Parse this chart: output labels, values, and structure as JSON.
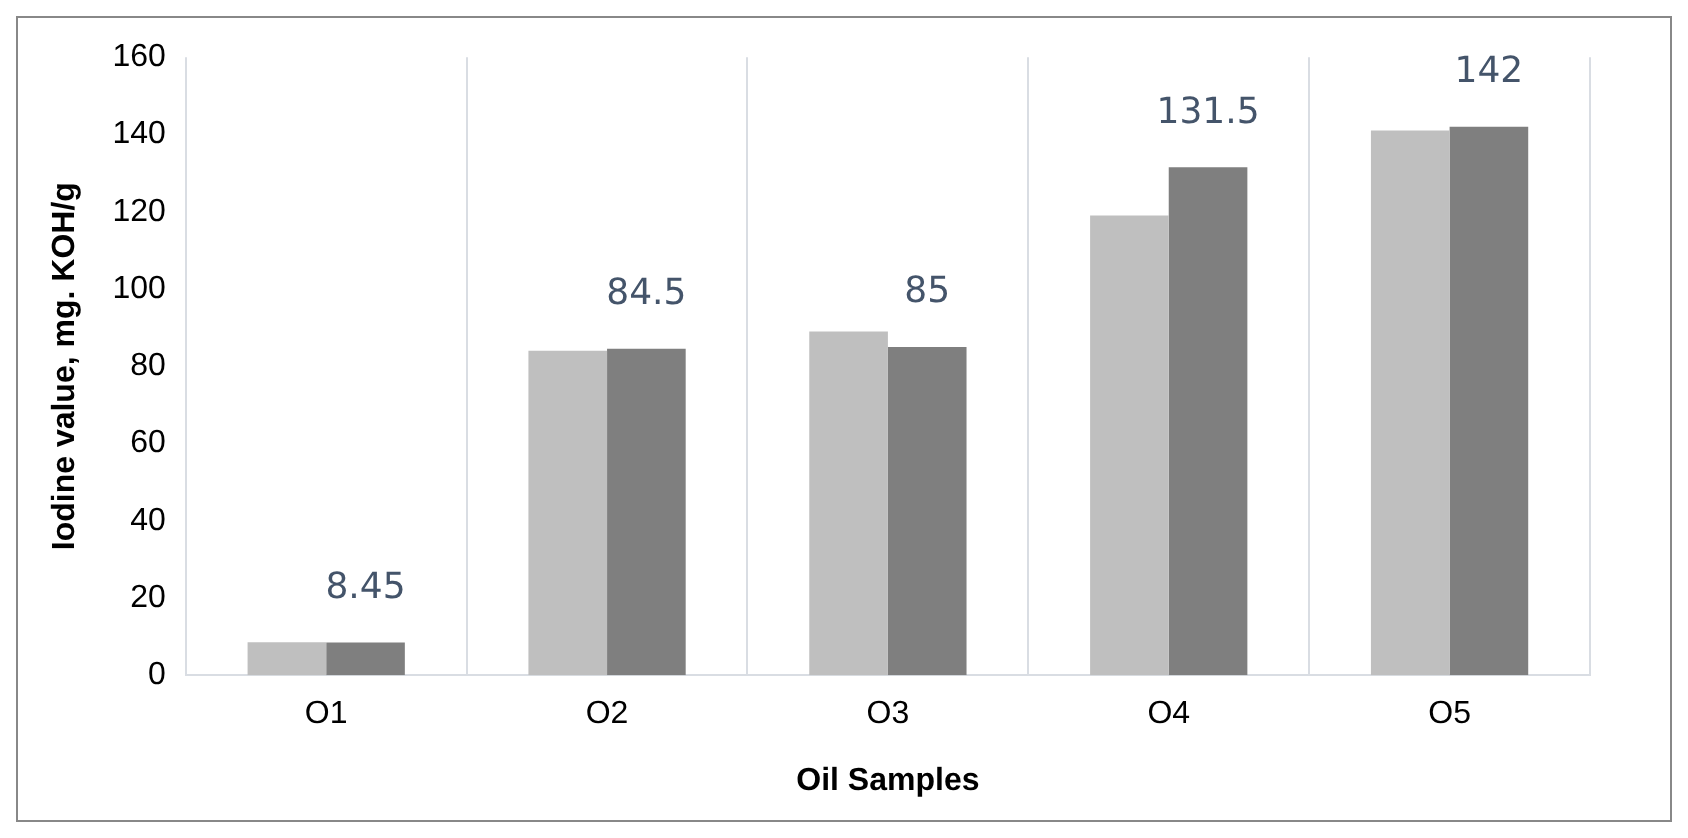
{
  "chart_data": {
    "type": "bar",
    "xlabel": "Oil Samples",
    "ylabel": "Iodine value, mg. KOH/g",
    "categories": [
      "O1",
      "O2",
      "O3",
      "O4",
      "O5"
    ],
    "series": [
      {
        "color": "#bfbfbf",
        "values": [
          8.5,
          84,
          89,
          119,
          141
        ]
      },
      {
        "color": "#7f7f7f",
        "values": [
          8.45,
          84.5,
          85,
          131.5,
          142
        ],
        "value_labels": [
          "8.45",
          "84.5",
          "85",
          "131.5",
          "142"
        ]
      }
    ],
    "ylim": [
      0,
      160
    ],
    "yticks": [
      0,
      20,
      40,
      60,
      80,
      100,
      120,
      140,
      160
    ],
    "grid": "x",
    "legend": false
  }
}
